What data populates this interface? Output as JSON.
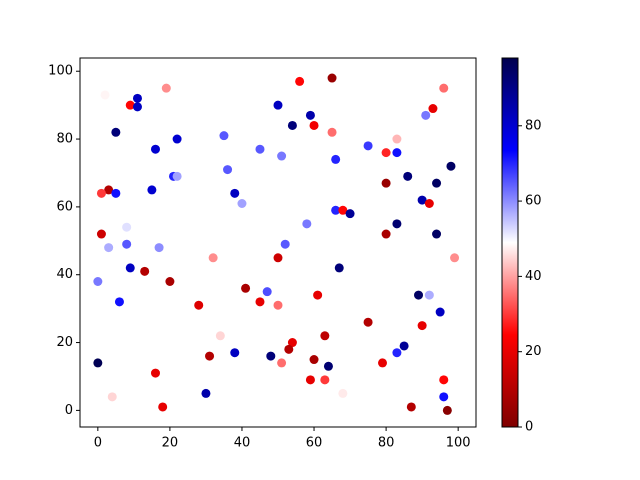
{
  "chart_data": {
    "type": "scatter",
    "x": [
      2,
      9,
      11,
      11,
      19,
      56,
      65,
      96,
      93,
      50,
      59,
      60,
      54,
      65,
      91,
      5,
      22,
      35,
      83,
      75,
      80,
      83,
      45,
      51,
      66,
      16,
      36,
      21,
      22,
      86,
      80,
      94,
      98,
      3,
      1,
      5,
      15,
      38,
      40,
      90,
      92,
      66,
      68,
      70,
      1,
      8,
      58,
      83,
      80,
      94,
      3,
      8,
      17,
      52,
      9,
      13,
      32,
      50,
      67,
      99,
      0,
      20,
      41,
      47,
      6,
      28,
      45,
      50,
      61,
      89,
      92,
      95,
      75,
      90,
      34,
      63,
      54,
      53,
      38,
      31,
      48,
      83,
      85,
      0,
      51,
      60,
      64,
      79,
      16,
      59,
      63,
      96,
      68,
      30,
      4,
      96,
      18,
      87,
      97
    ],
    "values": [
      93,
      90,
      89.5,
      92,
      95,
      97,
      98,
      95,
      89,
      90,
      87,
      84,
      84,
      82,
      87,
      82,
      80,
      81,
      80,
      78,
      76,
      76,
      77,
      75,
      74,
      77,
      71,
      69,
      69,
      69,
      67,
      67,
      72,
      65,
      64,
      64,
      65,
      64,
      61,
      62,
      61,
      59,
      59,
      58,
      52,
      54,
      55,
      55,
      52,
      52,
      48,
      49,
      48,
      49,
      42,
      41,
      45,
      45,
      42,
      45,
      38,
      38,
      36,
      35,
      32,
      31,
      32,
      31,
      34,
      34,
      34,
      29,
      26,
      25,
      22,
      22,
      20,
      18,
      17,
      16,
      16,
      17,
      19,
      14,
      14,
      15,
      13,
      14,
      11,
      9,
      9,
      9,
      5,
      5,
      4,
      4,
      1,
      1,
      0
    ],
    "color_values": [
      48,
      25,
      82,
      82,
      38,
      25,
      5,
      35,
      20,
      82,
      85,
      22,
      92,
      35,
      62,
      92,
      80,
      65,
      42,
      68,
      28,
      72,
      65,
      62,
      70,
      80,
      65,
      70,
      58,
      92,
      5,
      95,
      95,
      10,
      30,
      72,
      80,
      82,
      58,
      85,
      20,
      70,
      25,
      88,
      15,
      52,
      62,
      93,
      8,
      95,
      57,
      65,
      60,
      65,
      82,
      10,
      38,
      15,
      92,
      38,
      62,
      8,
      8,
      66,
      72,
      18,
      20,
      35,
      20,
      95,
      57,
      82,
      10,
      20,
      45,
      12,
      20,
      10,
      82,
      10,
      92,
      70,
      88,
      97,
      35,
      8,
      93,
      20,
      20,
      20,
      30,
      25,
      47,
      85,
      45,
      72,
      20,
      10,
      2
    ],
    "colormap": "seismic_r",
    "xlim": [
      -4.95,
      104.95
    ],
    "ylim": [
      -4.9,
      103.9
    ],
    "clim": [
      0,
      98
    ],
    "xticks": [
      0,
      20,
      40,
      60,
      80,
      100
    ],
    "yticks": [
      0,
      20,
      40,
      60,
      80,
      100
    ],
    "cticks": [
      0,
      20,
      40,
      60,
      80
    ]
  }
}
